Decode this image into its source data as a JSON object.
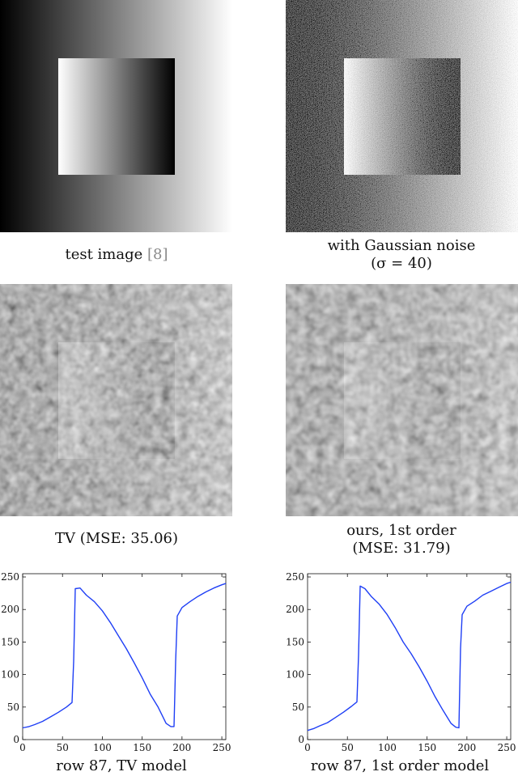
{
  "figure": {
    "panels": [
      {
        "caption": "test image",
        "citation": "[8]"
      },
      {
        "caption_line1": "with Gaussian noise",
        "caption_line2": "(σ = 40)"
      },
      {
        "caption": "TV (MSE: 35.06)"
      },
      {
        "caption_line1": "ours, 1st order",
        "caption_line2": "(MSE: 31.79)"
      },
      {
        "caption": "row 87, TV model"
      },
      {
        "caption": "row 87, 1st order model"
      }
    ]
  },
  "chart_data": [
    {
      "type": "line",
      "title": "row 87, TV model",
      "xlim": [
        0,
        255
      ],
      "ylim": [
        0,
        255
      ],
      "xticks": [
        0,
        50,
        100,
        150,
        200,
        250
      ],
      "yticks": [
        0,
        50,
        100,
        150,
        200,
        250
      ],
      "color": "#1f3ff5",
      "x": [
        0,
        8,
        15,
        25,
        35,
        45,
        55,
        62,
        64,
        66,
        72,
        80,
        90,
        100,
        110,
        120,
        130,
        140,
        150,
        160,
        170,
        180,
        186,
        190,
        192,
        194,
        200,
        210,
        220,
        230,
        240,
        250,
        255
      ],
      "y": [
        18,
        20,
        23,
        28,
        35,
        42,
        50,
        57,
        120,
        232,
        233,
        222,
        212,
        198,
        180,
        160,
        140,
        118,
        95,
        70,
        50,
        25,
        20,
        20,
        120,
        190,
        203,
        212,
        220,
        227,
        233,
        238,
        240
      ]
    },
    {
      "type": "line",
      "title": "row 87, 1st order model",
      "xlim": [
        0,
        255
      ],
      "ylim": [
        0,
        255
      ],
      "xticks": [
        0,
        50,
        100,
        150,
        200,
        250
      ],
      "yticks": [
        0,
        50,
        100,
        150,
        200,
        250
      ],
      "color": "#1f3ff5",
      "x": [
        0,
        8,
        15,
        25,
        35,
        45,
        55,
        62,
        64,
        66,
        72,
        80,
        90,
        100,
        110,
        120,
        130,
        140,
        150,
        160,
        170,
        180,
        186,
        190,
        192,
        194,
        200,
        210,
        220,
        230,
        240,
        250,
        255
      ],
      "y": [
        14,
        17,
        21,
        26,
        34,
        42,
        51,
        58,
        130,
        236,
        232,
        220,
        208,
        192,
        172,
        150,
        132,
        112,
        90,
        66,
        45,
        25,
        19,
        18,
        140,
        192,
        205,
        213,
        222,
        228,
        234,
        240,
        242
      ]
    }
  ]
}
